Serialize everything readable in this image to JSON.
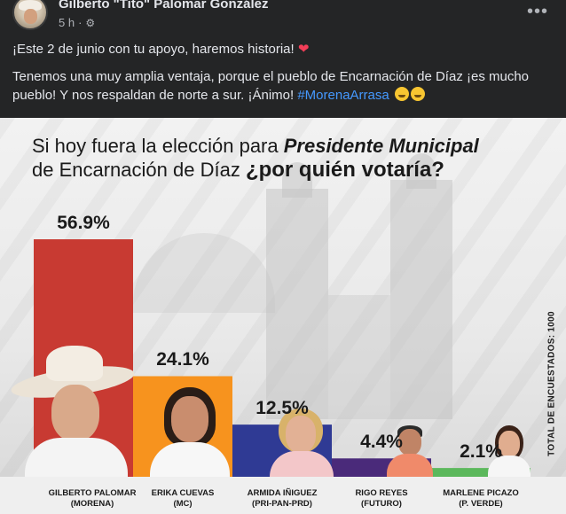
{
  "post": {
    "author": "Gilberto \"Tito\" Palomar González",
    "time": "5 h",
    "privacy_icon": "gear-icon",
    "more_icon": "more-options-icon",
    "text_line1": "¡Este 2 de junio con tu apoyo, haremos historia!",
    "text_line2": "Tenemos una muy amplia ventaja, porque el pueblo de Encarnación de Díaz ¡es mucho pueblo! Y nos respaldan de norte a sur. ¡Ánimo!",
    "hashtag": "#MorenaArrasa"
  },
  "chart_data": {
    "type": "bar",
    "title_part1": "Si hoy fuera la elección para ",
    "title_part2": "Presidente Municipal",
    "title_part3": "de Encarnación de Díaz ",
    "title_part4": "¿por quién votaría?",
    "side_note": "TOTAL DE ENCUESTADOS: 1000",
    "ylim": [
      0,
      60
    ],
    "categories": [
      {
        "name": "GILBERTO PALOMAR",
        "party": "(MORENA)",
        "value": 56.9,
        "label": "56.9%",
        "color": "#c83a32"
      },
      {
        "name": "ERIKA CUEVAS",
        "party": "(MC)",
        "value": 24.1,
        "label": "24.1%",
        "color": "#f7931e"
      },
      {
        "name": "ARMIDA IÑIGUEZ",
        "party": "(PRI-PAN-PRD)",
        "value": 12.5,
        "label": "12.5%",
        "color": "#2f3a94"
      },
      {
        "name": "RIGO REYES",
        "party": "(FUTURO)",
        "value": 4.4,
        "label": "4.4%",
        "color": "#4a2a7a"
      },
      {
        "name": "MARLENE PICAZO",
        "party": "(P. VERDE)",
        "value": 2.1,
        "label": "2.1%",
        "color": "#5cb85c"
      }
    ]
  }
}
